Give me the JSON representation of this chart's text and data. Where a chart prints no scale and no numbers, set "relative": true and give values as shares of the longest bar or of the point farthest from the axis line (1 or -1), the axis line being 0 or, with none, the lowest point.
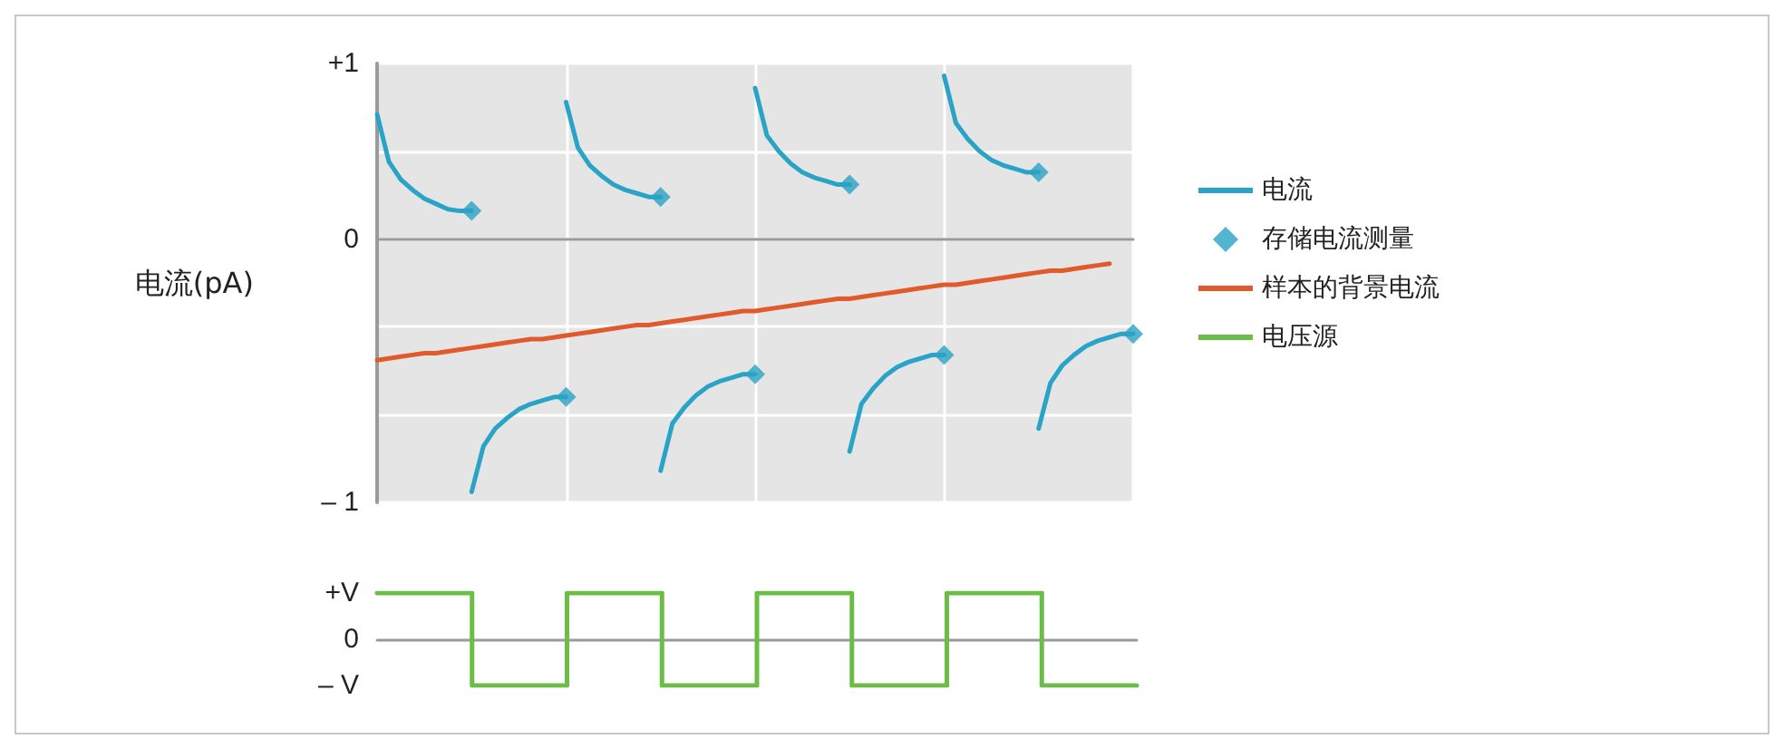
{
  "chart_data": [
    {
      "type": "line",
      "ylabel": "电流(pA)",
      "categories": [
        null,
        null,
        null,
        null,
        null,
        null,
        null,
        null,
        null,
        null,
        null,
        null,
        null,
        null,
        null,
        null,
        null,
        null,
        null,
        null,
        null,
        null,
        null,
        null,
        null,
        null,
        null,
        null,
        null,
        null,
        null,
        null,
        null,
        null,
        null,
        null,
        null,
        null,
        null,
        null,
        null,
        null,
        null,
        null,
        null,
        null,
        null,
        null,
        null,
        null,
        null,
        null,
        null,
        null,
        null,
        null,
        null,
        null,
        null,
        null,
        null,
        null,
        null,
        null,
        null
      ],
      "ylim": [
        -1.5,
        1
      ],
      "yticks": [
        {
          "value": -1.5,
          "label": "– 1"
        },
        {
          "value": -1,
          "label": null
        },
        {
          "value": -0.5,
          "label": null
        },
        0,
        {
          "value": 0.5,
          "label": null
        },
        {
          "value": 1,
          "label": "+1"
        }
      ],
      "grid": true,
      "legend": "right",
      "tick_labels": "y",
      "series": [
        {
          "name": "电流",
          "marker": "none",
          "color": "#29a3c6",
          "values": [
            0.71,
            0.44,
            0.34,
            0.28,
            0.23,
            0.2,
            0.17,
            0.16,
            0.16,
            null,
            null,
            null,
            null,
            null,
            null,
            null,
            0.78,
            0.52,
            0.42,
            0.36,
            0.31,
            0.28,
            0.26,
            0.24,
            0.24,
            null,
            null,
            null,
            null,
            null,
            null,
            null,
            0.86,
            0.59,
            0.5,
            0.43,
            0.38,
            0.35,
            0.33,
            0.31,
            0.31,
            null,
            null,
            null,
            null,
            null,
            null,
            null,
            0.93,
            0.66,
            0.57,
            0.5,
            0.45,
            0.42,
            0.4,
            0.38,
            0.38,
            null,
            null,
            null,
            null,
            null,
            null,
            null,
            null
          ]
        },
        {
          "marker": "none",
          "color": "#29a3c6",
          "values": [
            null,
            null,
            null,
            null,
            null,
            null,
            null,
            null,
            -1.44,
            -1.18,
            -1.08,
            -1.02,
            -0.97,
            -0.94,
            -0.92,
            -0.9,
            -0.9,
            null,
            null,
            null,
            null,
            null,
            null,
            null,
            -1.32,
            -1.05,
            -0.96,
            -0.89,
            -0.84,
            -0.81,
            -0.79,
            -0.77,
            -0.77,
            null,
            null,
            null,
            null,
            null,
            null,
            null,
            -1.21,
            -0.94,
            -0.85,
            -0.78,
            -0.73,
            -0.7,
            -0.68,
            -0.66,
            -0.66,
            null,
            null,
            null,
            null,
            null,
            null,
            null,
            -1.08,
            -0.82,
            -0.72,
            -0.66,
            -0.61,
            -0.58,
            -0.56,
            -0.54,
            -0.54
          ]
        },
        {
          "name": "存储电流测量",
          "type": "scatter",
          "marker": "diamond",
          "color": "#29a3c6",
          "values": [
            null,
            null,
            null,
            null,
            null,
            null,
            null,
            null,
            0.16,
            null,
            null,
            null,
            null,
            null,
            null,
            null,
            -0.9,
            null,
            null,
            null,
            null,
            null,
            null,
            null,
            0.24,
            null,
            null,
            null,
            null,
            null,
            null,
            null,
            -0.77,
            null,
            null,
            null,
            null,
            null,
            null,
            null,
            0.31,
            null,
            null,
            null,
            null,
            null,
            null,
            null,
            -0.66,
            null,
            null,
            null,
            null,
            null,
            null,
            null,
            0.38,
            null,
            null,
            null,
            null,
            null,
            null,
            null,
            -0.54
          ]
        },
        {
          "name": "样本的背景电流",
          "marker": "none",
          "color": "#e05a2b",
          "values": [
            -0.69,
            -0.68,
            -0.67,
            -0.66,
            -0.65,
            -0.65,
            -0.64,
            -0.63,
            -0.62,
            -0.61,
            -0.6,
            -0.59,
            -0.58,
            -0.57,
            -0.57,
            -0.56,
            -0.55,
            -0.54,
            -0.53,
            -0.52,
            -0.51,
            -0.5,
            -0.49,
            -0.49,
            -0.48,
            -0.47,
            -0.46,
            -0.45,
            -0.44,
            -0.43,
            -0.42,
            -0.41,
            -0.41,
            -0.4,
            -0.39,
            -0.38,
            -0.37,
            -0.36,
            -0.35,
            -0.34,
            -0.34,
            -0.33,
            -0.32,
            -0.31,
            -0.3,
            -0.29,
            -0.28,
            -0.27,
            -0.26,
            -0.26,
            -0.25,
            -0.24,
            -0.23,
            -0.22,
            -0.21,
            -0.2,
            -0.19,
            -0.18,
            -0.18,
            -0.17,
            -0.16,
            -0.15,
            -0.14,
            null,
            null
          ]
        }
      ]
    },
    {
      "type": "step",
      "categories": [
        null,
        null,
        null,
        null,
        null,
        null,
        null,
        null,
        null
      ],
      "relative": true,
      "annotations": [
        "+V",
        "0",
        "– V"
      ],
      "legend": "right",
      "tick_labels": "y",
      "series": [
        {
          "name": "电压源",
          "marker": "none",
          "color": "#6cbd45",
          "values": [
            1,
            -1,
            1,
            -1,
            1,
            -1,
            1,
            -1,
            -1
          ]
        }
      ]
    }
  ]
}
